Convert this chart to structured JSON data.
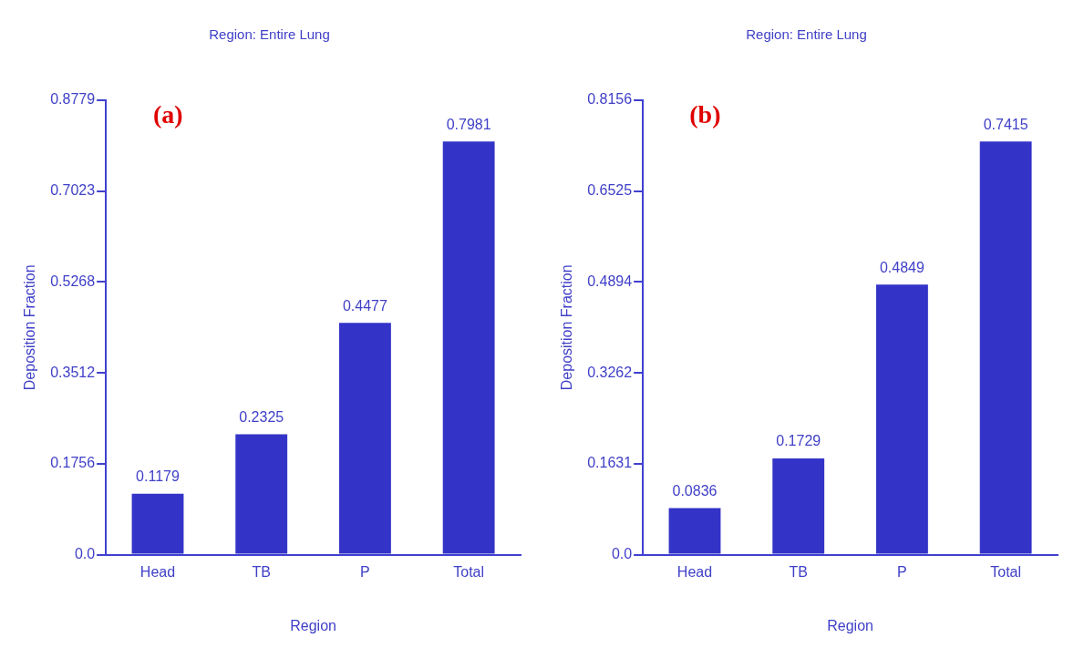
{
  "chart_data": [
    {
      "type": "bar",
      "title": "Region: Entire Lung",
      "xlabel": "Region",
      "ylabel": "Deposition Fraction",
      "annotations": [
        "(a)"
      ],
      "categories": [
        "Head",
        "TB",
        "P",
        "Total"
      ],
      "values": [
        0.1179,
        0.2325,
        0.4477,
        0.7981
      ],
      "color": "#3333c8",
      "ylim": [
        0,
        0.8779
      ],
      "yticks": [
        {
          "value": 0,
          "label": "0.0"
        },
        0.1756,
        0.3512,
        0.5268,
        0.7023,
        0.8779
      ],
      "data_labels": true,
      "grid": false,
      "legend": false
    },
    {
      "type": "bar",
      "title": "Region: Entire Lung",
      "xlabel": "Region",
      "ylabel": "Deposition Fraction",
      "annotations": [
        "(b)"
      ],
      "categories": [
        "Head",
        "TB",
        "P",
        "Total"
      ],
      "values": [
        0.0836,
        0.1729,
        0.4849,
        0.7415
      ],
      "color": "#3333c8",
      "ylim": [
        0,
        0.8156
      ],
      "yticks": [
        {
          "value": 0,
          "label": "0.0"
        },
        0.1631,
        0.3262,
        0.4894,
        0.6525,
        0.8156
      ],
      "data_labels": true,
      "grid": false,
      "legend": false
    }
  ]
}
